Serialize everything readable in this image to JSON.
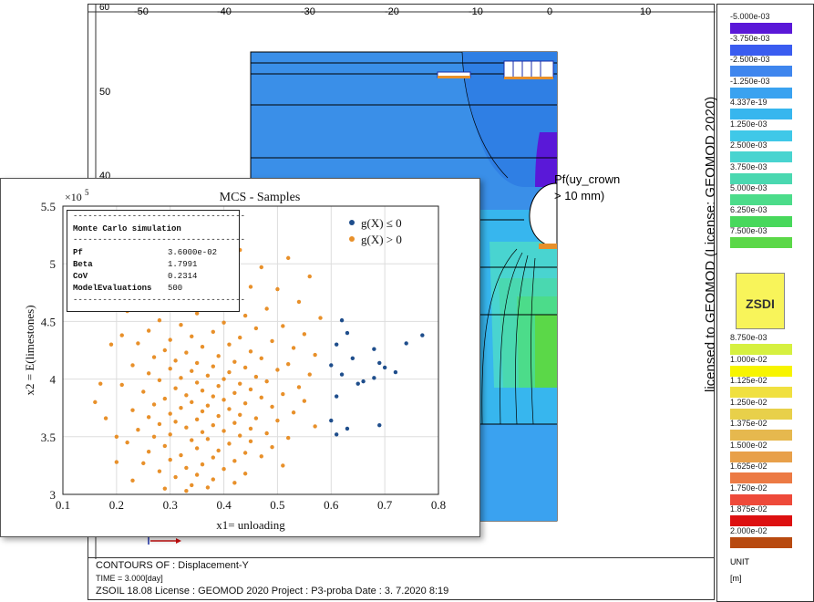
{
  "top_axis": {
    "ticks": [
      "-50",
      "-40",
      "-30",
      "-20",
      "-10",
      "0",
      "10"
    ],
    "corner": "60"
  },
  "left_axis": {
    "ticks": [
      "50",
      "40"
    ]
  },
  "annotation": {
    "line1": "Pf(uy_crown",
    "line2": "> 10 mm)"
  },
  "legend": {
    "upper": [
      {
        "label": "-5.000e-03",
        "color": "#5a18d8"
      },
      {
        "label": "-3.750e-03",
        "color": "#3a5cf0"
      },
      {
        "label": "-2.500e-03",
        "color": "#3f86ee"
      },
      {
        "label": "-1.250e-03",
        "color": "#3aa2f0"
      },
      {
        "label": "4.337e-19",
        "color": "#37b6ee"
      },
      {
        "label": "1.250e-03",
        "color": "#3fc8e8"
      },
      {
        "label": "2.500e-03",
        "color": "#49d4d0"
      },
      {
        "label": "3.750e-03",
        "color": "#4ad8b0"
      },
      {
        "label": "5.000e-03",
        "color": "#4cdc8a"
      },
      {
        "label": "6.250e-03",
        "color": "#48d85c"
      },
      {
        "label": "7.500e-03",
        "color": "#5bd848"
      }
    ],
    "lower": [
      {
        "label": "8.750e-03",
        "color": "#d6f040"
      },
      {
        "label": "1.000e-02",
        "color": "#f7f400"
      },
      {
        "label": "1.125e-02",
        "color": "#f0e040"
      },
      {
        "label": "1.250e-02",
        "color": "#e8d04a"
      },
      {
        "label": "1.375e-02",
        "color": "#e6b84e"
      },
      {
        "label": "1.500e-02",
        "color": "#e8a04a"
      },
      {
        "label": "1.625e-02",
        "color": "#ec7a44"
      },
      {
        "label": "1.750e-02",
        "color": "#ee4a3a"
      },
      {
        "label": "1.875e-02",
        "color": "#dd1010"
      },
      {
        "label": "2.000e-02",
        "color": "#b84a10"
      }
    ],
    "unit_label": "UNIT",
    "unit_value": "[m]",
    "logo_text": "ZSDI"
  },
  "license_text": "licensed to GEOMOD (License: GEOMOD 2020)",
  "footer": {
    "line1": "CONTOURS OF : Displacement-Y",
    "line2": "TIME = 3.000[day]",
    "line3": "ZSOIL 18.08   License :  GEOMOD 2020   Project : P3-proba     Date :  3. 7.2020   8:19"
  },
  "mcs": {
    "title": "MCS - Samples",
    "exponent": "×10",
    "exponent_power": "5",
    "legend_blue": "g(X) ≤ 0",
    "legend_orange": "g(X) > 0",
    "box": {
      "heading": "Monte Carlo simulation",
      "rows": [
        {
          "key": "Pf",
          "value": "3.6000e-02"
        },
        {
          "key": "Beta",
          "value": "1.7991"
        },
        {
          "key": "CoV",
          "value": "0.2314"
        },
        {
          "key": "ModelEvaluations",
          "value": "500"
        }
      ]
    }
  },
  "chart_data": {
    "type": "scatter",
    "title": "MCS - Samples",
    "xlabel": "x1= unloading",
    "ylabel": "x2 = E(limestones)",
    "xlim": [
      0.1,
      0.8
    ],
    "ylim": [
      300000,
      550000
    ],
    "xticks": [
      "0.1",
      "0.2",
      "0.3",
      "0.4",
      "0.5",
      "0.6",
      "0.7",
      "0.8"
    ],
    "yticks": [
      "3",
      "3.5",
      "4",
      "4.5",
      "5",
      "5.5"
    ],
    "grid": true,
    "legend_position": "top-right",
    "series": [
      {
        "name": "g(X) ≤ 0",
        "color": "#1f4e8c",
        "points": [
          [
            0.62,
            451000
          ],
          [
            0.63,
            440000
          ],
          [
            0.61,
            430000
          ],
          [
            0.64,
            418000
          ],
          [
            0.6,
            412000
          ],
          [
            0.62,
            404000
          ],
          [
            0.68,
            426000
          ],
          [
            0.69,
            414000
          ],
          [
            0.65,
            396000
          ],
          [
            0.66,
            398000
          ],
          [
            0.7,
            410000
          ],
          [
            0.72,
            406000
          ],
          [
            0.68,
            401000
          ],
          [
            0.61,
            385000
          ],
          [
            0.74,
            431000
          ],
          [
            0.77,
            438000
          ],
          [
            0.69,
            360000
          ],
          [
            0.63,
            357000
          ],
          [
            0.61,
            352000
          ],
          [
            0.6,
            364000
          ]
        ]
      },
      {
        "name": "g(X) > 0",
        "color": "#e8902a",
        "points": [
          [
            0.34,
            517000
          ],
          [
            0.43,
            512000
          ],
          [
            0.38,
            507000
          ],
          [
            0.52,
            505000
          ],
          [
            0.3,
            502000
          ],
          [
            0.47,
            497000
          ],
          [
            0.25,
            494000
          ],
          [
            0.41,
            491000
          ],
          [
            0.56,
            489000
          ],
          [
            0.36,
            486000
          ],
          [
            0.29,
            483000
          ],
          [
            0.45,
            480000
          ],
          [
            0.5,
            478000
          ],
          [
            0.33,
            476000
          ],
          [
            0.39,
            474000
          ],
          [
            0.27,
            471000
          ],
          [
            0.42,
            469000
          ],
          [
            0.54,
            467000
          ],
          [
            0.31,
            465000
          ],
          [
            0.37,
            463000
          ],
          [
            0.48,
            461000
          ],
          [
            0.22,
            459000
          ],
          [
            0.35,
            457000
          ],
          [
            0.44,
            455000
          ],
          [
            0.58,
            453000
          ],
          [
            0.28,
            451000
          ],
          [
            0.4,
            449000
          ],
          [
            0.32,
            447000
          ],
          [
            0.51,
            446000
          ],
          [
            0.46,
            444000
          ],
          [
            0.26,
            442000
          ],
          [
            0.38,
            441000
          ],
          [
            0.55,
            439000
          ],
          [
            0.34,
            437000
          ],
          [
            0.43,
            436000
          ],
          [
            0.3,
            434000
          ],
          [
            0.49,
            433000
          ],
          [
            0.24,
            431000
          ],
          [
            0.41,
            430000
          ],
          [
            0.36,
            428000
          ],
          [
            0.53,
            427000
          ],
          [
            0.29,
            425000
          ],
          [
            0.45,
            424000
          ],
          [
            0.33,
            423000
          ],
          [
            0.57,
            421000
          ],
          [
            0.39,
            420000
          ],
          [
            0.27,
            419000
          ],
          [
            0.47,
            418000
          ],
          [
            0.31,
            416000
          ],
          [
            0.42,
            415000
          ],
          [
            0.35,
            414000
          ],
          [
            0.52,
            413000
          ],
          [
            0.23,
            412000
          ],
          [
            0.38,
            411000
          ],
          [
            0.44,
            410000
          ],
          [
            0.3,
            409000
          ],
          [
            0.5,
            408000
          ],
          [
            0.34,
            407000
          ],
          [
            0.41,
            406000
          ],
          [
            0.26,
            405000
          ],
          [
            0.56,
            404000
          ],
          [
            0.37,
            403000
          ],
          [
            0.46,
            402000
          ],
          [
            0.32,
            401000
          ],
          [
            0.4,
            400000
          ],
          [
            0.28,
            399000
          ],
          [
            0.48,
            398000
          ],
          [
            0.35,
            397000
          ],
          [
            0.43,
            396000
          ],
          [
            0.21,
            395000
          ],
          [
            0.39,
            394000
          ],
          [
            0.54,
            393000
          ],
          [
            0.31,
            392000
          ],
          [
            0.45,
            391000
          ],
          [
            0.36,
            390000
          ],
          [
            0.25,
            389000
          ],
          [
            0.42,
            388000
          ],
          [
            0.51,
            387000
          ],
          [
            0.33,
            386000
          ],
          [
            0.38,
            385000
          ],
          [
            0.47,
            384000
          ],
          [
            0.29,
            383000
          ],
          [
            0.4,
            382000
          ],
          [
            0.55,
            381000
          ],
          [
            0.34,
            380000
          ],
          [
            0.44,
            379000
          ],
          [
            0.27,
            378000
          ],
          [
            0.37,
            377000
          ],
          [
            0.49,
            376000
          ],
          [
            0.32,
            375000
          ],
          [
            0.41,
            374000
          ],
          [
            0.23,
            373000
          ],
          [
            0.36,
            372000
          ],
          [
            0.53,
            371000
          ],
          [
            0.3,
            370000
          ],
          [
            0.43,
            369000
          ],
          [
            0.39,
            368000
          ],
          [
            0.26,
            367000
          ],
          [
            0.46,
            366000
          ],
          [
            0.35,
            365000
          ],
          [
            0.5,
            364000
          ],
          [
            0.31,
            363000
          ],
          [
            0.42,
            362000
          ],
          [
            0.28,
            361000
          ],
          [
            0.38,
            360000
          ],
          [
            0.57,
            359000
          ],
          [
            0.33,
            358000
          ],
          [
            0.45,
            357000
          ],
          [
            0.24,
            356000
          ],
          [
            0.4,
            355000
          ],
          [
            0.36,
            354000
          ],
          [
            0.48,
            353000
          ],
          [
            0.3,
            352000
          ],
          [
            0.43,
            351000
          ],
          [
            0.27,
            350000
          ],
          [
            0.52,
            349000
          ],
          [
            0.37,
            348000
          ],
          [
            0.34,
            347000
          ],
          [
            0.45,
            346000
          ],
          [
            0.22,
            345000
          ],
          [
            0.41,
            344000
          ],
          [
            0.29,
            342000
          ],
          [
            0.49,
            341000
          ],
          [
            0.35,
            340000
          ],
          [
            0.39,
            338000
          ],
          [
            0.26,
            337000
          ],
          [
            0.44,
            336000
          ],
          [
            0.32,
            334000
          ],
          [
            0.47,
            333000
          ],
          [
            0.38,
            332000
          ],
          [
            0.3,
            330000
          ],
          [
            0.42,
            329000
          ],
          [
            0.25,
            327000
          ],
          [
            0.36,
            326000
          ],
          [
            0.51,
            325000
          ],
          [
            0.33,
            323000
          ],
          [
            0.4,
            322000
          ],
          [
            0.28,
            320000
          ],
          [
            0.44,
            318000
          ],
          [
            0.35,
            317000
          ],
          [
            0.31,
            315000
          ],
          [
            0.38,
            313000
          ],
          [
            0.23,
            312000
          ],
          [
            0.42,
            310000
          ],
          [
            0.34,
            308000
          ],
          [
            0.37,
            306000
          ],
          [
            0.29,
            305000
          ],
          [
            0.33,
            303000
          ],
          [
            0.2,
            328000
          ],
          [
            0.16,
            380000
          ],
          [
            0.17,
            396000
          ],
          [
            0.19,
            430000
          ],
          [
            0.21,
            438000
          ],
          [
            0.18,
            366000
          ],
          [
            0.2,
            350000
          ]
        ]
      }
    ]
  }
}
